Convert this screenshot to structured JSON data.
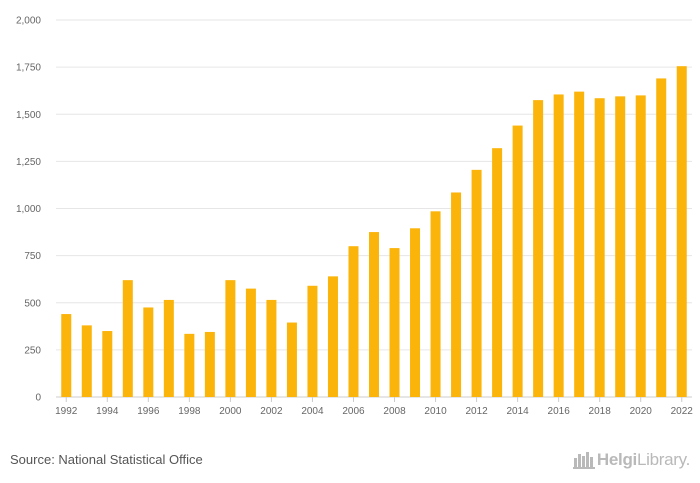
{
  "chart_data": {
    "type": "bar",
    "categories": [
      "1992",
      "1993",
      "1994",
      "1995",
      "1996",
      "1997",
      "1998",
      "1999",
      "2000",
      "2001",
      "2002",
      "2003",
      "2004",
      "2005",
      "2006",
      "2007",
      "2008",
      "2009",
      "2010",
      "2011",
      "2012",
      "2013",
      "2014",
      "2015",
      "2016",
      "2017",
      "2018",
      "2019",
      "2020",
      "2021",
      "2022"
    ],
    "x_tick_labels": [
      "1992",
      "1994",
      "1996",
      "1998",
      "2000",
      "2002",
      "2004",
      "2006",
      "2008",
      "2010",
      "2012",
      "2014",
      "2016",
      "2018",
      "2020",
      "2022"
    ],
    "values": [
      440,
      380,
      350,
      620,
      475,
      515,
      335,
      345,
      620,
      575,
      515,
      395,
      590,
      640,
      800,
      875,
      790,
      895,
      985,
      1085,
      1205,
      1320,
      1440,
      1575,
      1605,
      1620,
      1585,
      1595,
      1600,
      1690,
      1755
    ],
    "y_ticks": [
      "0",
      "250",
      "500",
      "750",
      "1,000",
      "1,250",
      "1,500",
      "1,750",
      "2,000"
    ],
    "ylim": [
      0,
      2000
    ],
    "title": "",
    "xlabel": "",
    "ylabel": "",
    "bar_color": "#FBB40A",
    "grid": true
  },
  "footer": {
    "source": "Source: National Statistical Office",
    "logo_part1": "Helgi",
    "logo_part2": "Library",
    "logo_icon": "helgi-buildings-icon"
  },
  "colors": {
    "bar": "#FBB40A",
    "grid": "#e6e6e6",
    "axis": "#cccccc",
    "tick_text": "#666666",
    "logo": "#b9b9b9"
  }
}
